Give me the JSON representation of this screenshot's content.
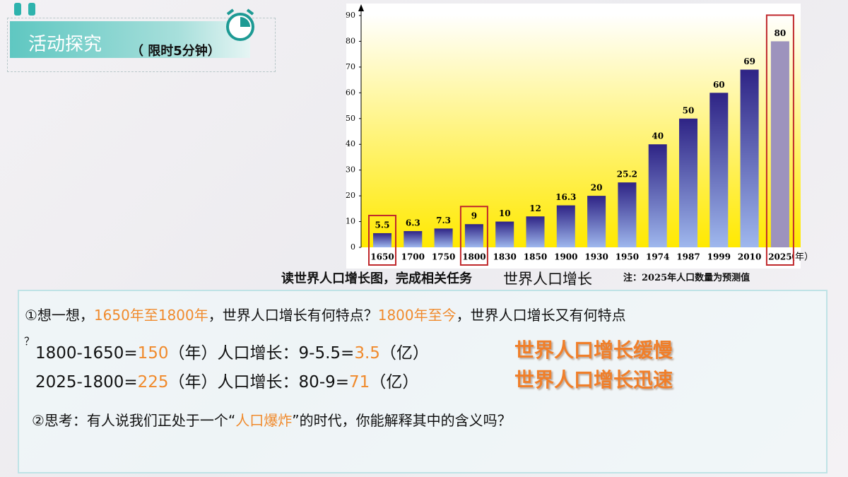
{
  "header": {
    "title": "活动探究",
    "time_limit": "（   限时5分钟）"
  },
  "chart_data": {
    "type": "bar",
    "categories": [
      "1650",
      "1700",
      "1750",
      "1800",
      "1830",
      "1850",
      "1900",
      "1930",
      "1950",
      "1974",
      "1987",
      "1999",
      "2010",
      "2025"
    ],
    "values": [
      5.5,
      6.3,
      7.3,
      9,
      10,
      12,
      16.3,
      20,
      25.2,
      40,
      50,
      60,
      69,
      80
    ],
    "xlabel": "（年）",
    "ylim": [
      0,
      90
    ],
    "yticks": [
      0,
      10,
      20,
      30,
      40,
      50,
      60,
      70,
      80,
      90
    ],
    "color": "#2e2385",
    "forecast_color": "#9d93bd",
    "grid": false,
    "caption": "世界人口增长",
    "note": "注：2025年人口数量为预测值"
  },
  "task": "读世界人口增长图，完成相关任务",
  "question1": [
    "①想一想，",
    "1650年至1800年",
    "，世界人口增长有何特点？",
    "1800年至今",
    "，世界人口增长又有何特点",
    "？"
  ],
  "answer1": [
    "1800-1650=",
    "150",
    "（年）人口增长：9-5.5=",
    "3.5",
    "（亿）",
    "世界人口增长缓慢"
  ],
  "answer2": [
    "2025-1800=",
    "225",
    "（年）人口增长：80-9=",
    "71",
    "（亿）",
    "世界人口增长迅速"
  ],
  "question2": [
    "②思考：有人说我们正处于一个“",
    "人口爆炸",
    "”的时代，你能解释其中的含义吗？"
  ]
}
